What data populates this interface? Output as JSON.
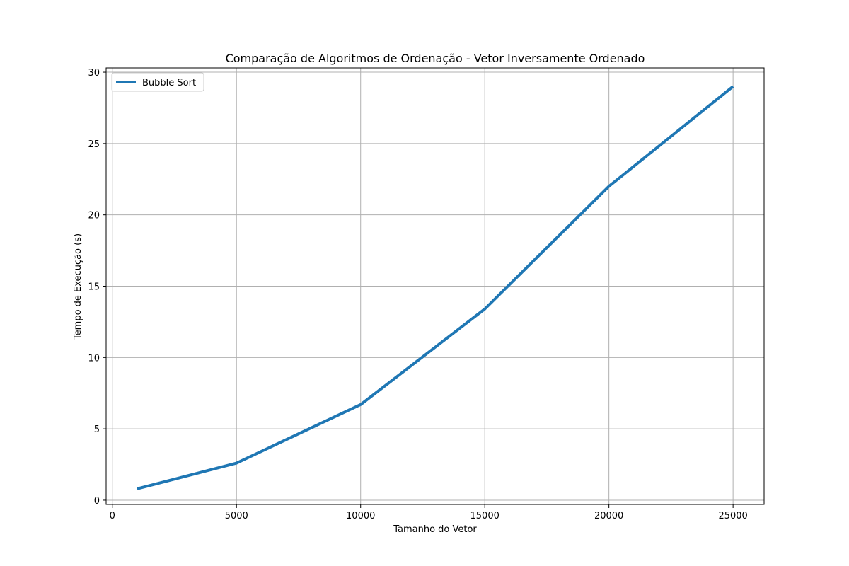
{
  "chart_data": {
    "type": "line",
    "title": "Comparação de Algoritmos de Ordenação - Vetor Inversamente Ordenado",
    "xlabel": "Tamanho do Vetor",
    "ylabel": "Tempo de Execução (s)",
    "xlim": [
      -250,
      26250
    ],
    "ylim": [
      -0.3,
      30.3
    ],
    "xticks": [
      0,
      5000,
      10000,
      15000,
      20000,
      25000
    ],
    "yticks": [
      0,
      5,
      10,
      15,
      20,
      25,
      30
    ],
    "xtick_labels": [
      "0",
      "5000",
      "10000",
      "15000",
      "20000",
      "25000"
    ],
    "ytick_labels": [
      "0",
      "5",
      "10",
      "15",
      "20",
      "25",
      "30"
    ],
    "grid": true,
    "legend_position": "upper-left",
    "x": [
      1000,
      5000,
      10000,
      15000,
      20000,
      25000
    ],
    "series": [
      {
        "name": "Bubble Sort",
        "color": "#1f77b4",
        "values": [
          0.8,
          2.6,
          6.7,
          13.4,
          22.0,
          29.0
        ]
      }
    ]
  }
}
